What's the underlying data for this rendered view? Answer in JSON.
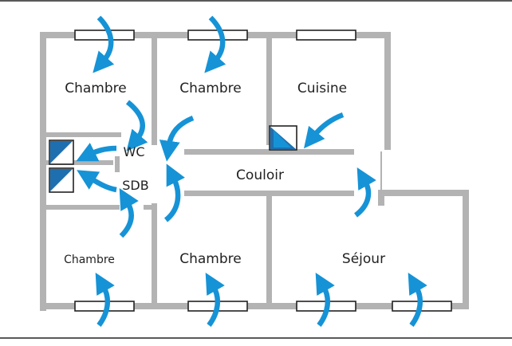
{
  "rooms": {
    "chambre_top_left": "Chambre",
    "chambre_top_mid": "Chambre",
    "cuisine": "Cuisine",
    "wc": "WC",
    "sdb": "SDB",
    "couloir": "Couloir",
    "chambre_bottom_left": "Chambre",
    "chambre_bottom_mid": "Chambre",
    "sejour": "Séjour"
  },
  "colors": {
    "wall": "#b3b3b3",
    "airflow": "#1693d6",
    "extraction_unit": "#1e6fb0",
    "frame": "#222222"
  },
  "icons": {
    "inlet_vent": "window-air-inlet-icon",
    "extraction": "extraction-vent-icon",
    "airflow": "airflow-arrow-icon"
  }
}
